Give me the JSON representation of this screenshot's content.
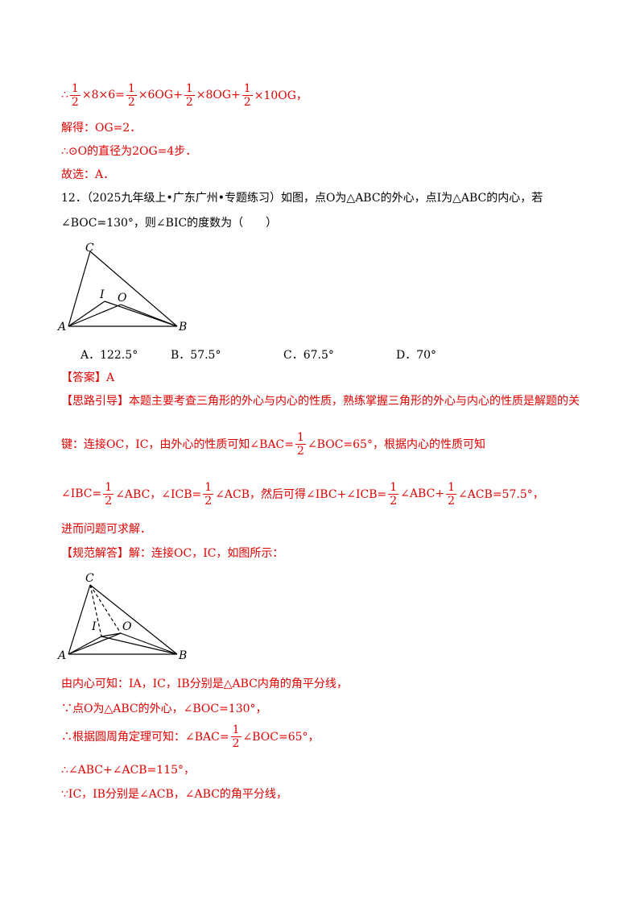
{
  "lines": [
    [
      "∴",
      {
        "num": "1",
        "den": "2"
      },
      "×8×6=",
      {
        "num": "1",
        "den": "2"
      },
      "×6OG+",
      {
        "num": "1",
        "den": "2"
      },
      "×8OG+",
      {
        "num": "1",
        "den": "2"
      },
      "×10OG，"
    ],
    [
      "解得：OG=2．"
    ],
    [
      "∴⊙O的直径为2OG=4步．"
    ],
    [
      "故选：A．"
    ],
    [
      "12．（2025九年级上•广东广州•专题练习）如图，点O为△ABC的外心，点I为△ABC的内心，若"
    ],
    [
      "∠BOC=130°，则∠BIC的度数为（　　）"
    ],
    [
      "【答案】A"
    ],
    [
      "【思路引导】本题主要考查三角形的外心与内心的性质，熟练掌握三角形的外心与内心的性质是解题的关"
    ],
    [
      "键：连接OC，IC，由外心的性质可知∠BAC=",
      {
        "num": "1",
        "den": "2"
      },
      "∠BOC=65°，根据内心的性质可知"
    ],
    [
      "∠IBC=",
      {
        "num": "1",
        "den": "2"
      },
      "∠ABC，∠ICB=",
      {
        "num": "1",
        "den": "2"
      },
      "∠ACB，然后可得∠IBC+∠ICB=",
      {
        "num": "1",
        "den": "2"
      },
      "∠ABC+",
      {
        "num": "1",
        "den": "2"
      },
      "∠ACB=57.5°，"
    ],
    [
      "进而问题可求解．"
    ],
    [
      "【规范解答】解：连接OC，IC，如图所示："
    ],
    [
      "由内心可知：IA，IC，IB分别是△ABC内角的角平分线，"
    ],
    [
      "∵点O为△ABC的外心，∠BOC=130°，"
    ],
    [
      "∴根据圆周角定理可知：∠BAC=",
      {
        "num": "1",
        "den": "2"
      },
      "∠BOC=65°，"
    ],
    [
      "∴∠ABC+∠ACB=115°，"
    ],
    [
      "∵IC，IB分别是∠ACB，∠ABC的角平分线，"
    ]
  ],
  "options": [
    "A．122.5°",
    "B．57.5°",
    "C．67.5°",
    "D．70°"
  ],
  "figures": [
    {
      "labels": [
        "C",
        "I",
        "O",
        "A",
        "B"
      ]
    },
    {
      "labels": [
        "C",
        "I",
        "O",
        "A",
        "B"
      ]
    }
  ]
}
